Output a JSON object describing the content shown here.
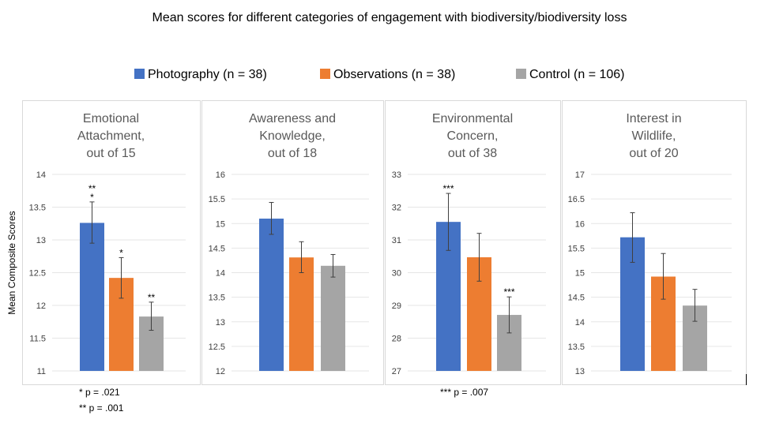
{
  "title": "Mean scores for different categories of engagement with biodiversity/biodiversity loss",
  "ylabel": "Mean Composite Scores",
  "legend": [
    {
      "label": "Photography (n = 38)",
      "color": "#4472C4"
    },
    {
      "label": "Observations (n = 38)",
      "color": "#ED7D31"
    },
    {
      "label": "Control (n = 106)",
      "color": "#A5A5A5"
    }
  ],
  "chart_data": [
    {
      "type": "bar",
      "title": "Emotional Attachment, out of 15",
      "title_lines": [
        "Emotional",
        "Attachment,",
        "out of 15"
      ],
      "ylim": [
        11,
        14
      ],
      "ticks": [
        "11",
        "11.5",
        "12",
        "12.5",
        "13",
        "13.5",
        "14"
      ],
      "series": [
        {
          "name": "Photography (n = 38)",
          "value": 13.26,
          "err_low": 12.95,
          "err_high": 13.58,
          "annot": [
            "**",
            "*"
          ]
        },
        {
          "name": "Observations (n = 38)",
          "value": 12.42,
          "err_low": 12.11,
          "err_high": 12.73,
          "annot": [
            "*"
          ]
        },
        {
          "name": "Control (n = 106)",
          "value": 11.83,
          "err_low": 11.62,
          "err_high": 12.05,
          "annot": [
            "**"
          ]
        }
      ]
    },
    {
      "type": "bar",
      "title": "Awareness and Knowledge, out of 18",
      "title_lines": [
        "Awareness and",
        "Knowledge,",
        "out of 18"
      ],
      "ylim": [
        12,
        16
      ],
      "ticks": [
        "12",
        "12.5",
        "13",
        "13.5",
        "14",
        "14.5",
        "15",
        "15.5",
        "16"
      ],
      "series": [
        {
          "name": "Photography (n = 38)",
          "value": 15.1,
          "err_low": 14.78,
          "err_high": 15.43,
          "annot": []
        },
        {
          "name": "Observations (n = 38)",
          "value": 14.31,
          "err_low": 14.0,
          "err_high": 14.63,
          "annot": []
        },
        {
          "name": "Control (n = 106)",
          "value": 14.14,
          "err_low": 13.91,
          "err_high": 14.37,
          "annot": []
        }
      ]
    },
    {
      "type": "bar",
      "title": "Environmental Concern, out of 38",
      "title_lines": [
        "Environmental",
        "Concern,",
        "out of 38"
      ],
      "ylim": [
        27,
        33
      ],
      "ticks": [
        "27",
        "28",
        "29",
        "30",
        "31",
        "32",
        "33"
      ],
      "series": [
        {
          "name": "Photography (n = 38)",
          "value": 31.55,
          "err_low": 30.68,
          "err_high": 32.42,
          "annot": [
            "***"
          ]
        },
        {
          "name": "Observations (n = 38)",
          "value": 30.47,
          "err_low": 29.74,
          "err_high": 31.2,
          "annot": []
        },
        {
          "name": "Control (n = 106)",
          "value": 28.71,
          "err_low": 28.16,
          "err_high": 29.26,
          "annot": [
            "***"
          ]
        }
      ]
    },
    {
      "type": "bar",
      "title": "Interest in Wildlife, out of 20",
      "title_lines": [
        "Interest in",
        "Wildlife,",
        "out of 20"
      ],
      "ylim": [
        13,
        17
      ],
      "ticks": [
        "13",
        "13.5",
        "14",
        "14.5",
        "15",
        "15.5",
        "16",
        "16.5",
        "17"
      ],
      "series": [
        {
          "name": "Photography (n = 38)",
          "value": 15.72,
          "err_low": 15.21,
          "err_high": 16.22,
          "annot": []
        },
        {
          "name": "Observations (n = 38)",
          "value": 14.92,
          "err_low": 14.46,
          "err_high": 15.39,
          "annot": []
        },
        {
          "name": "Control (n = 106)",
          "value": 14.33,
          "err_low": 14.01,
          "err_high": 14.66,
          "annot": []
        }
      ]
    }
  ],
  "footnotes": {
    "emotional_1": "* p = .021",
    "emotional_2": "** p = .001",
    "environmental_1": "*** p = .007"
  }
}
